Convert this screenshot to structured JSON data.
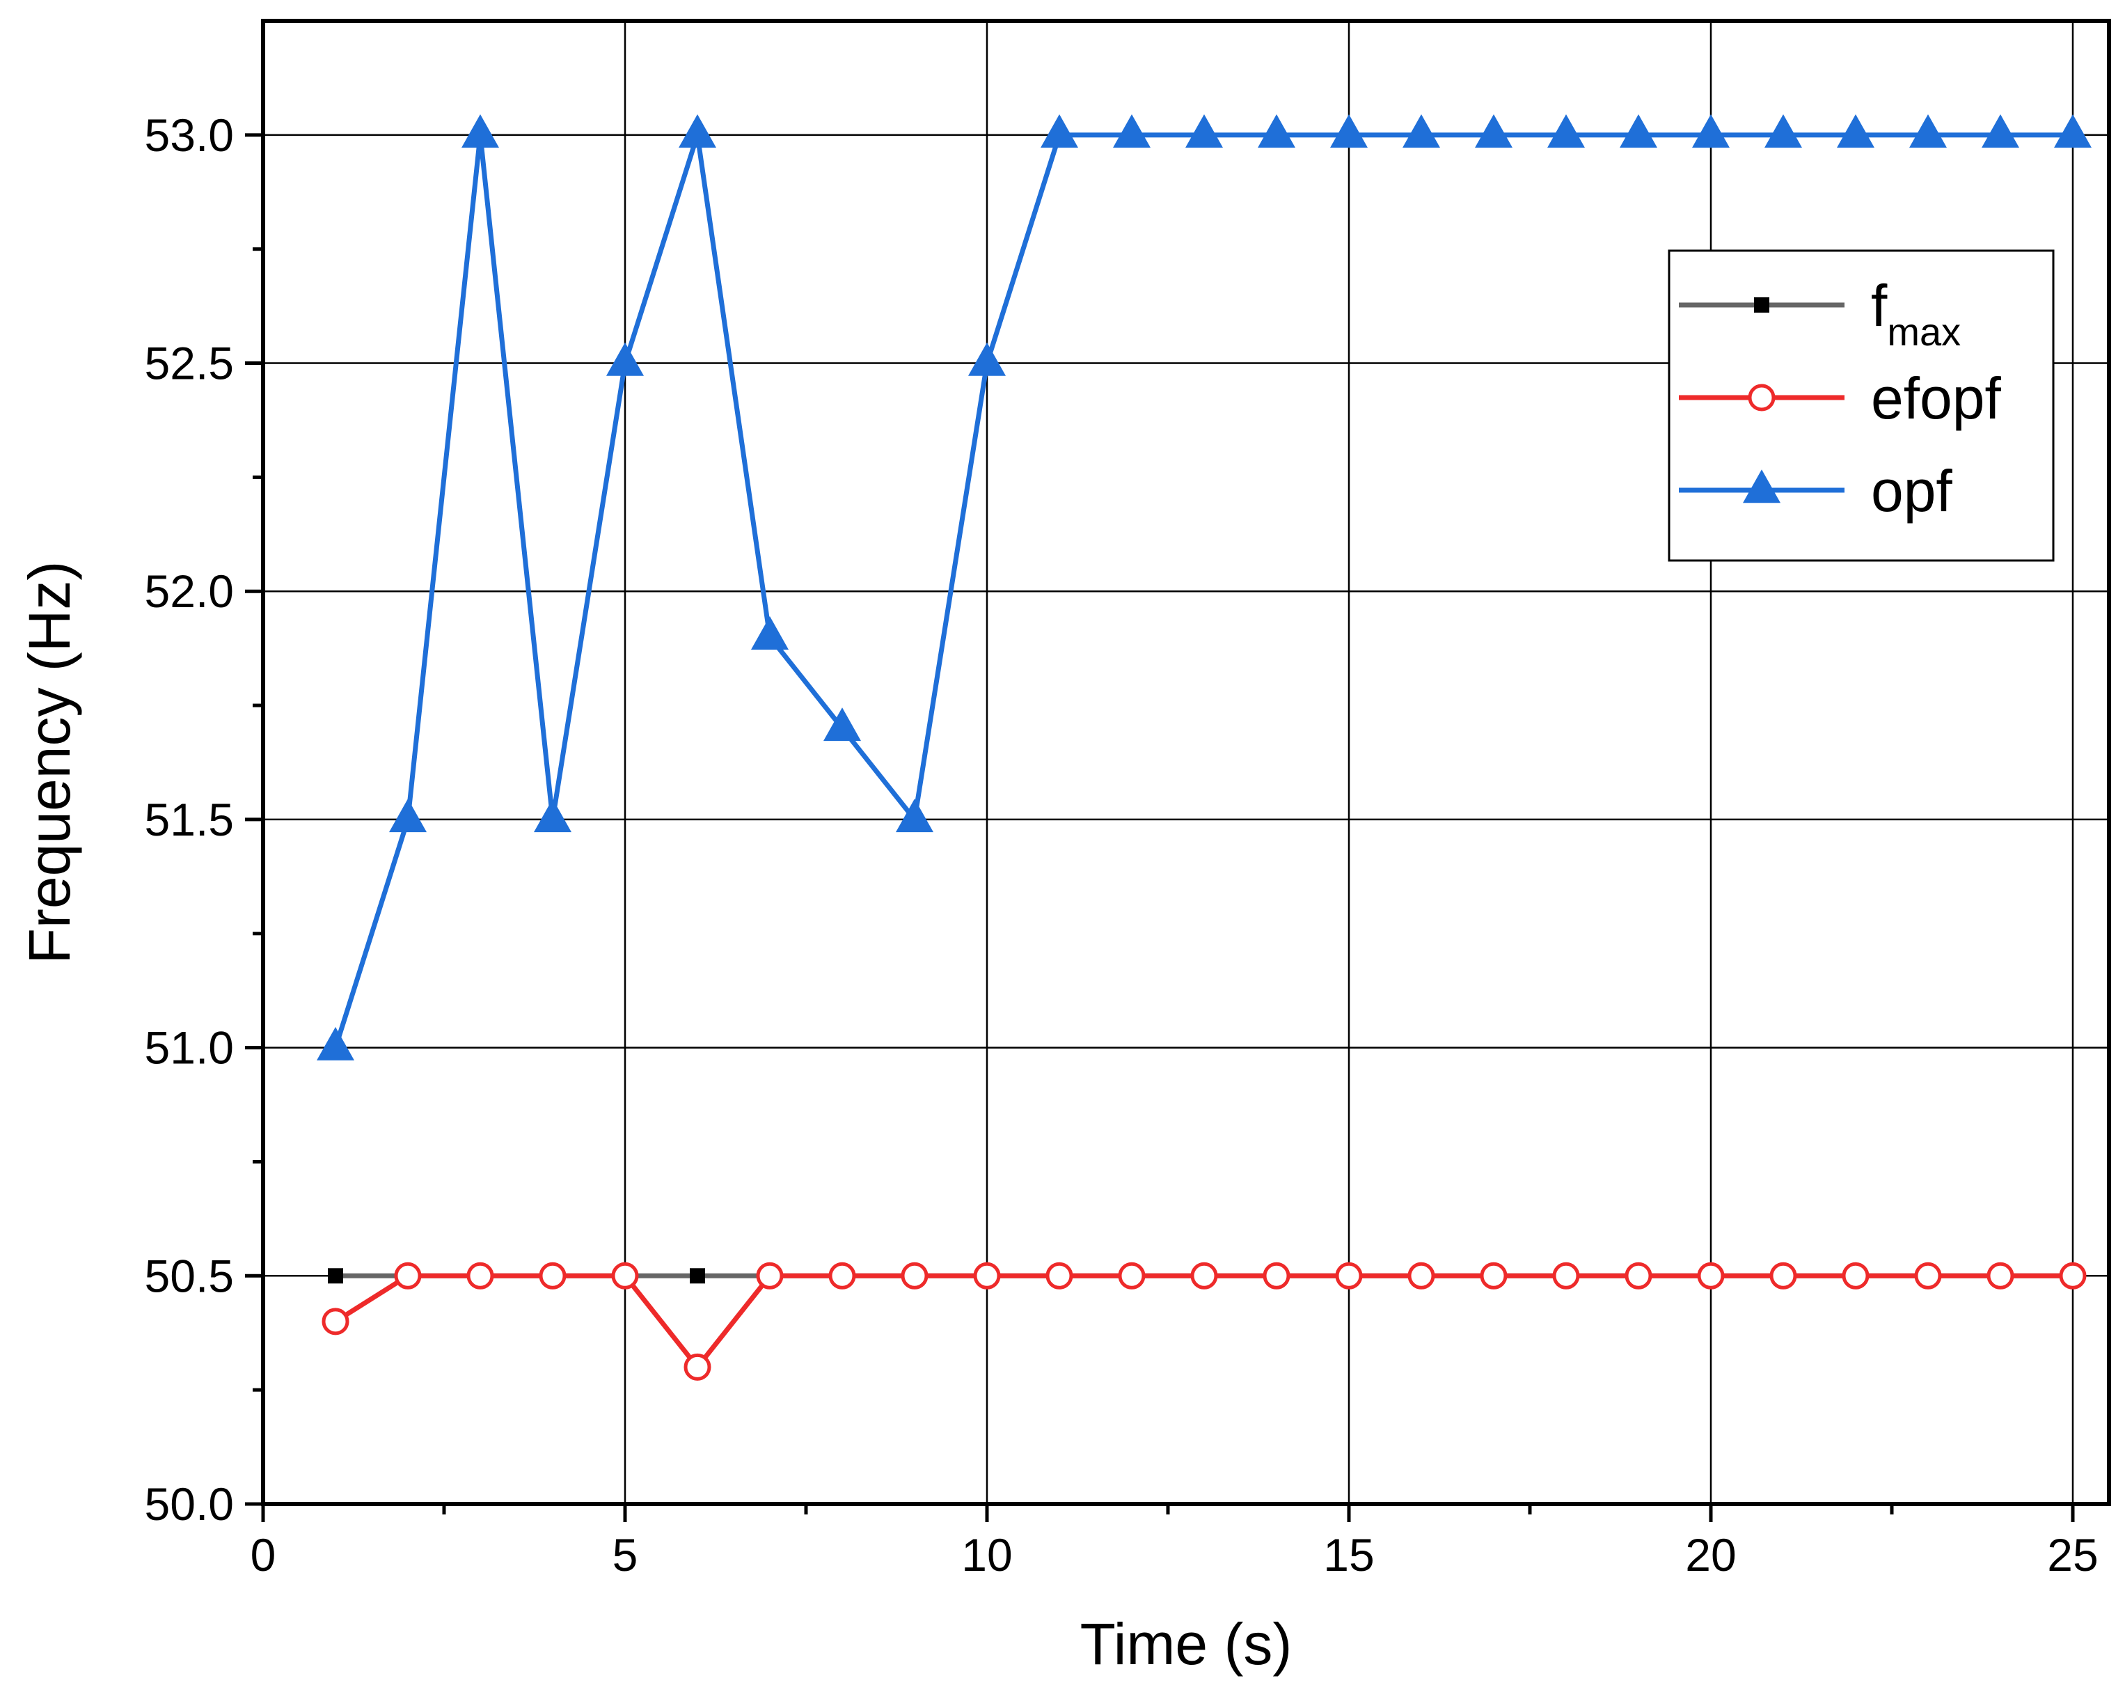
{
  "chart_data": {
    "type": "line",
    "xlabel": "Time (s)",
    "ylabel": "Frequency (Hz)",
    "xlim": [
      0,
      25.5
    ],
    "ylim": [
      50.0,
      53.25
    ],
    "xticks": [
      0,
      5,
      10,
      15,
      20,
      25
    ],
    "xtick_labels": [
      "0",
      "5",
      "10",
      "15",
      "20",
      "25"
    ],
    "yticks": [
      50.0,
      50.5,
      51.0,
      51.5,
      52.0,
      52.5,
      53.0
    ],
    "ytick_labels": [
      "50.0",
      "50.5",
      "51.0",
      "51.5",
      "52.0",
      "52.5",
      "53.0"
    ],
    "grid": true,
    "legend_position": "top-right",
    "x": [
      1,
      2,
      3,
      4,
      5,
      6,
      7,
      8,
      9,
      10,
      11,
      12,
      13,
      14,
      15,
      16,
      17,
      18,
      19,
      20,
      21,
      22,
      23,
      24,
      25
    ],
    "series": [
      {
        "name": "f",
        "name_subscript": "max",
        "color": "#666666",
        "marker": "square",
        "marker_color": "#000000",
        "values": [
          50.5,
          50.5,
          50.5,
          50.5,
          50.5,
          50.5,
          50.5,
          50.5,
          50.5,
          50.5,
          50.5,
          50.5,
          50.5,
          50.5,
          50.5,
          50.5,
          50.5,
          50.5,
          50.5,
          50.5,
          50.5,
          50.5,
          50.5,
          50.5,
          50.5
        ]
      },
      {
        "name": "efopf",
        "color": "#ee2a2a",
        "marker": "open-circle",
        "marker_color": "#ee2a2a",
        "values": [
          50.4,
          50.5,
          50.5,
          50.5,
          50.5,
          50.3,
          50.5,
          50.5,
          50.5,
          50.5,
          50.5,
          50.5,
          50.5,
          50.5,
          50.5,
          50.5,
          50.5,
          50.5,
          50.5,
          50.5,
          50.5,
          50.5,
          50.5,
          50.5,
          50.5
        ]
      },
      {
        "name": "opf",
        "color": "#1f6fd8",
        "marker": "triangle",
        "marker_color": "#1f6fd8",
        "values": [
          51.0,
          51.5,
          53.0,
          51.5,
          52.5,
          53.0,
          51.9,
          51.7,
          51.5,
          52.5,
          53.0,
          53.0,
          53.0,
          53.0,
          53.0,
          53.0,
          53.0,
          53.0,
          53.0,
          53.0,
          53.0,
          53.0,
          53.0,
          53.0,
          53.0
        ]
      }
    ]
  }
}
